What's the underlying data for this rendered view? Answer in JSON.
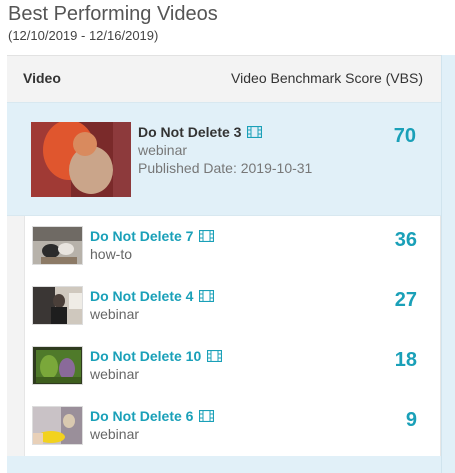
{
  "header": {
    "title": "Best Performing Videos",
    "date_range": "(12/10/2019 - 12/16/2019)"
  },
  "table": {
    "col_video": "Video",
    "col_score": "Video Benchmark Score (VBS)"
  },
  "featured": {
    "title": "Do Not Delete 3",
    "category": "webinar",
    "published": "Published Date: 2019-10-31",
    "score": "70",
    "icon": "film-icon"
  },
  "videos": [
    {
      "title": "Do Not Delete 7",
      "category": "how-to",
      "score": "36",
      "icon": "film-icon"
    },
    {
      "title": "Do Not Delete 4",
      "category": "webinar",
      "score": "27",
      "icon": "film-icon"
    },
    {
      "title": "Do Not Delete 10",
      "category": "webinar",
      "score": "18",
      "icon": "film-icon"
    },
    {
      "title": "Do Not Delete 6",
      "category": "webinar",
      "score": "9",
      "icon": "film-icon"
    }
  ],
  "colors": {
    "accent": "#1aa0b8",
    "highlight_bg": "#e1f0f8"
  }
}
